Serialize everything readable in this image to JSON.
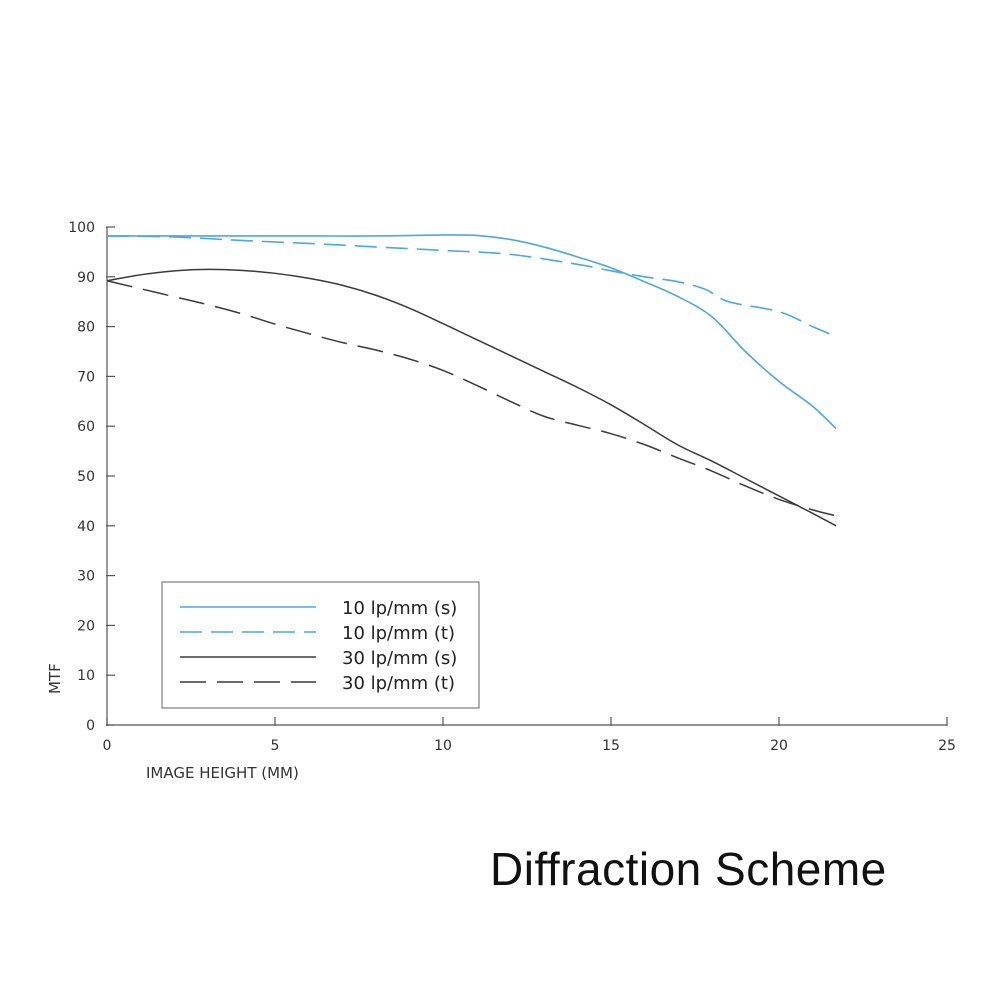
{
  "caption": "Diffraction Scheme",
  "chart_data": {
    "type": "line",
    "title": "",
    "xlabel": "IMAGE HEIGHT (MM)",
    "ylabel": "MTF",
    "xlim": [
      0,
      25
    ],
    "ylim": [
      0,
      100
    ],
    "xticks": [
      0,
      5,
      10,
      15,
      20,
      25
    ],
    "yticks": [
      0,
      10,
      20,
      30,
      40,
      50,
      60,
      70,
      80,
      90,
      100
    ],
    "grid": false,
    "legend_position": "bottom-left",
    "colors": {
      "blue": "#4aa8e4",
      "dark": "#3a3a3a",
      "axis": "#555555"
    },
    "series": [
      {
        "name": "10 lp/mm (s)",
        "color": "blue",
        "dash": "solid",
        "x": [
          0,
          2,
          4,
          6,
          8,
          10,
          11,
          12,
          13,
          14,
          15,
          16,
          17,
          18,
          19,
          20,
          21,
          21.7
        ],
        "y": [
          98.2,
          98.2,
          98.2,
          98.2,
          98.2,
          98.4,
          98.3,
          97.5,
          96,
          94,
          91.8,
          89,
          86,
          82,
          75,
          69,
          64,
          59.5
        ]
      },
      {
        "name": "10 lp/mm (t)",
        "color": "blue",
        "dash": "dashed",
        "x": [
          0,
          2,
          4,
          6,
          8,
          10,
          12,
          14,
          15,
          16,
          17,
          17.8,
          18.5,
          20,
          21,
          21.7
        ],
        "y": [
          98.2,
          98,
          97.3,
          96.7,
          96,
          95.3,
          94.5,
          92.5,
          91.2,
          90,
          89,
          87.5,
          85,
          83,
          80,
          78
        ]
      },
      {
        "name": "30 lp/mm (s)",
        "color": "dark",
        "dash": "solid",
        "x": [
          0,
          1,
          2,
          3,
          4,
          5,
          6,
          7,
          8,
          9,
          10,
          11,
          12,
          13,
          14,
          15,
          16,
          17,
          18,
          19,
          20,
          21,
          21.7
        ],
        "y": [
          89.2,
          90.4,
          91.2,
          91.5,
          91.3,
          90.7,
          89.7,
          88.3,
          86.3,
          83.7,
          80.6,
          77.4,
          74.2,
          71,
          67.8,
          64.3,
          60.3,
          56.2,
          53,
          49.5,
          46,
          42.5,
          40
        ]
      },
      {
        "name": "30 lp/mm (t)",
        "color": "dark",
        "dash": "longdash",
        "x": [
          0,
          1,
          2,
          3,
          4,
          5,
          6,
          7,
          8,
          9,
          10,
          11,
          12,
          13,
          14,
          15,
          16,
          17,
          18,
          19,
          20,
          21,
          21.7
        ],
        "y": [
          89.2,
          87.6,
          86,
          84.4,
          82.6,
          80.5,
          78.6,
          76.8,
          75.3,
          73.5,
          71.2,
          68.2,
          65,
          62,
          60.2,
          58.5,
          56.3,
          53.6,
          51,
          48,
          45.3,
          43.2,
          42
        ]
      }
    ]
  }
}
